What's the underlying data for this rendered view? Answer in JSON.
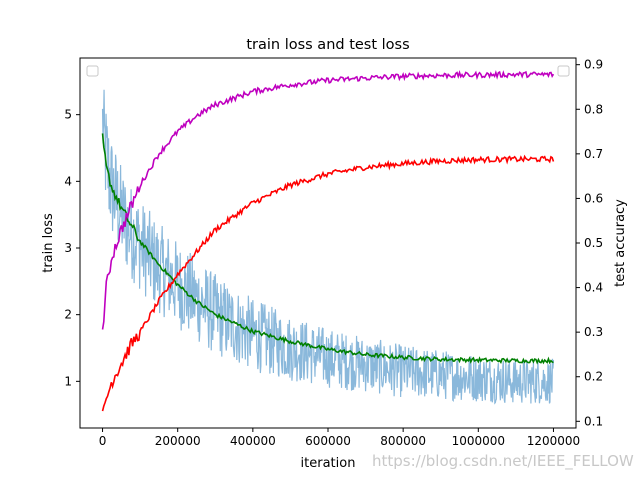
{
  "chart_data": {
    "type": "line",
    "title": "train loss and test loss",
    "xlabel": "iteration",
    "ylabel": "train loss",
    "ylabel_right": "test accuracy",
    "xlim": [
      -60000,
      1260000
    ],
    "ylim": [
      0.3,
      5.85
    ],
    "ylim_right": [
      0.085,
      0.915
    ],
    "x_ticks": [
      0,
      200000,
      400000,
      600000,
      800000,
      1000000,
      1200000
    ],
    "x_tick_labels": [
      "0",
      "200000",
      "400000",
      "600000",
      "800000",
      "1000000",
      "1200000"
    ],
    "y_ticks": [
      1,
      2,
      3,
      4,
      5
    ],
    "y_tick_labels": [
      "1",
      "2",
      "3",
      "4",
      "5"
    ],
    "y_right_ticks": [
      0.1,
      0.2,
      0.3,
      0.4,
      0.5,
      0.6,
      0.7,
      0.8,
      0.9
    ],
    "y_right_tick_labels": [
      "0.1",
      "0.2",
      "0.3",
      "0.4",
      "0.5",
      "0.6",
      "0.7",
      "0.8",
      "0.9"
    ],
    "grid": false,
    "legend": "empty legend boxes at top-left and top-right",
    "series": [
      {
        "axis": "left",
        "color": "#8ab8db",
        "style": "noisy band",
        "x": [
          0,
          10000,
          25000,
          50000,
          75000,
          100000,
          150000,
          200000,
          300000,
          400000,
          500000,
          600000,
          700000,
          800000,
          900000,
          1000000,
          1100000,
          1200000
        ],
        "center": [
          4.9,
          4.3,
          3.9,
          3.5,
          3.25,
          3.05,
          2.7,
          2.45,
          2.0,
          1.7,
          1.5,
          1.35,
          1.25,
          1.15,
          1.1,
          1.05,
          1.0,
          1.0
        ],
        "spread": [
          0.6,
          0.9,
          0.8,
          0.75,
          0.72,
          0.7,
          0.68,
          0.66,
          0.62,
          0.55,
          0.5,
          0.45,
          0.42,
          0.4,
          0.38,
          0.36,
          0.35,
          0.34
        ]
      },
      {
        "axis": "left",
        "color": "#008000",
        "x": [
          0,
          10000,
          25000,
          50000,
          75000,
          100000,
          150000,
          200000,
          250000,
          300000,
          400000,
          500000,
          600000,
          700000,
          800000,
          900000,
          1000000,
          1100000,
          1200000
        ],
        "values": [
          4.65,
          4.2,
          3.9,
          3.6,
          3.35,
          3.1,
          2.75,
          2.45,
          2.2,
          2.0,
          1.75,
          1.6,
          1.48,
          1.4,
          1.36,
          1.33,
          1.32,
          1.31,
          1.31
        ]
      },
      {
        "axis": "right",
        "color": "#ff0000",
        "x": [
          0,
          10000,
          25000,
          50000,
          75000,
          100000,
          150000,
          200000,
          250000,
          300000,
          400000,
          500000,
          600000,
          700000,
          800000,
          900000,
          1000000,
          1100000,
          1200000
        ],
        "values": [
          0.11,
          0.15,
          0.19,
          0.23,
          0.27,
          0.3,
          0.37,
          0.43,
          0.48,
          0.53,
          0.59,
          0.63,
          0.655,
          0.67,
          0.678,
          0.684,
          0.687,
          0.688,
          0.688
        ]
      },
      {
        "axis": "right",
        "color": "#bf00bf",
        "x": [
          0,
          10000,
          25000,
          50000,
          75000,
          100000,
          150000,
          200000,
          250000,
          300000,
          400000,
          500000,
          600000,
          700000,
          800000,
          900000,
          1000000,
          1100000,
          1200000
        ],
        "values": [
          0.3,
          0.4,
          0.47,
          0.53,
          0.58,
          0.63,
          0.7,
          0.75,
          0.785,
          0.81,
          0.84,
          0.855,
          0.865,
          0.87,
          0.874,
          0.876,
          0.877,
          0.878,
          0.878
        ]
      }
    ]
  },
  "watermark": "https://blog.csdn.net/IEEE_FELLOW"
}
